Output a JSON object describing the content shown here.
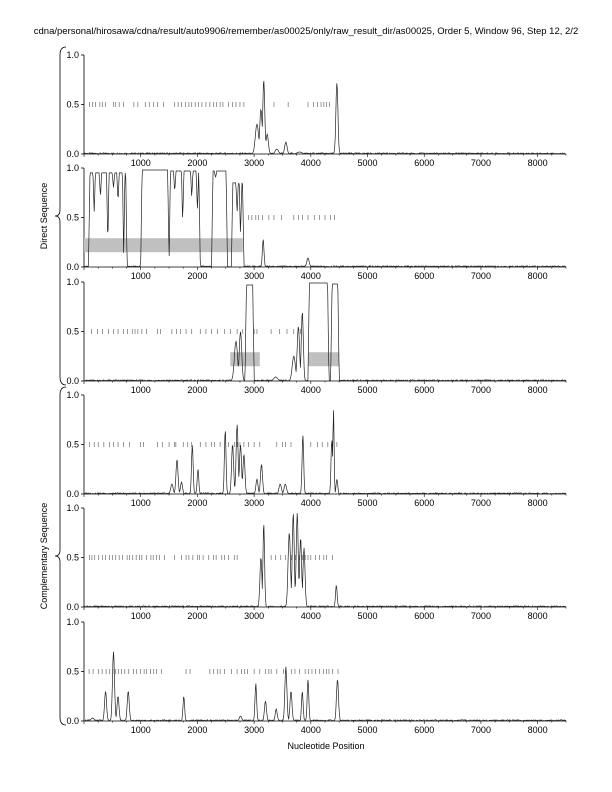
{
  "title": "cdna/personal/hirosawa/cdna/result/auto9906/remember/as00025/only/raw_result_dir/as00025, Order 5, Window 96, Step 12, 2/2",
  "colors": {
    "line": "#222222",
    "ticks": "#555555",
    "bar": "#c0c0c0",
    "axis": "#000000"
  },
  "chart_data": {
    "type": "line",
    "xlabel": "Nucleotide Position",
    "x_ticks": [
      1000,
      2000,
      3000,
      4000,
      5000,
      6000,
      7000,
      8000
    ],
    "y_ticks": [
      "0.0",
      "0.5",
      "1.0"
    ],
    "xlim": [
      0,
      8500
    ],
    "ylim": [
      0,
      1
    ],
    "groups": [
      {
        "label": "Direct Sequence",
        "panels": [
          0,
          1,
          2
        ]
      },
      {
        "label": "Complementary Sequence",
        "panels": [
          3,
          4,
          5
        ]
      }
    ],
    "panels": [
      {
        "ticks": [
          100,
          150,
          200,
          280,
          330,
          380,
          520,
          560,
          620,
          700,
          880,
          950,
          1080,
          1150,
          1230,
          1300,
          1400,
          1600,
          1660,
          1720,
          1790,
          1850,
          1900,
          1960,
          2020,
          2080,
          2150,
          2220,
          2280,
          2340,
          2400,
          2450,
          2550,
          2620,
          2680,
          2750,
          2820,
          3350,
          3600,
          3950,
          4050,
          4120,
          4180,
          4230,
          4280,
          4330
        ],
        "bars": [],
        "peaks": [
          [
            3050,
            0.3,
            40
          ],
          [
            3120,
            0.45,
            30
          ],
          [
            3170,
            0.75,
            25
          ],
          [
            3230,
            0.2,
            30
          ],
          [
            3400,
            0.05,
            40
          ],
          [
            3560,
            0.12,
            30
          ],
          [
            3800,
            0.02,
            60
          ],
          [
            4460,
            0.72,
            25
          ]
        ]
      },
      {
        "ticks": [
          2900,
          2960,
          3030,
          3080,
          3150,
          3260,
          3350,
          3480,
          3700,
          3780,
          3850,
          3950,
          4060,
          4150,
          4250,
          4350,
          4420
        ],
        "bars": [
          [
            0,
            2800,
            0.22
          ]
        ],
        "high": [
          [
            80,
            760,
            0.95
          ],
          [
            1000,
            1500,
            0.98
          ],
          [
            1500,
            2050,
            0.97
          ],
          [
            2250,
            2530,
            0.97
          ],
          [
            2600,
            2820,
            0.85
          ]
        ],
        "dips": [
          [
            180,
            0.55
          ],
          [
            290,
            0.7
          ],
          [
            420,
            0.2
          ],
          [
            520,
            0.8
          ],
          [
            600,
            0.65
          ],
          [
            700,
            0.1
          ],
          [
            1600,
            0.75
          ],
          [
            1740,
            0.45
          ],
          [
            1900,
            0.7
          ],
          [
            2000,
            0.55
          ],
          [
            2320,
            0.9
          ],
          [
            2700,
            0.55
          ],
          [
            2760,
            0.3
          ]
        ],
        "peaks": [
          [
            3160,
            0.28,
            20
          ],
          [
            3950,
            0.09,
            30
          ]
        ]
      },
      {
        "ticks": [
          130,
          240,
          330,
          430,
          520,
          600,
          700,
          770,
          850,
          900,
          950,
          1020,
          1100,
          1300,
          1350,
          1550,
          1630,
          1700,
          1800,
          1900,
          2050,
          2150,
          2250,
          2350,
          2480,
          2580,
          2700,
          2800,
          3000,
          3050,
          3300,
          3450,
          3580,
          3700,
          3820
        ],
        "bars": [
          [
            2580,
            3100,
            0.22
          ],
          [
            3950,
            4500,
            0.22
          ]
        ],
        "high": [
          [
            2840,
            3000,
            0.97
          ],
          [
            3950,
            4320,
            0.99
          ],
          [
            4350,
            4500,
            0.98
          ]
        ],
        "dips": [
          [
            4330,
            0.55
          ]
        ],
        "peaks": [
          [
            2680,
            0.4,
            40
          ],
          [
            2760,
            0.5,
            30
          ],
          [
            3380,
            0.04,
            50
          ],
          [
            3700,
            0.25,
            40
          ],
          [
            3780,
            0.55,
            30
          ],
          [
            3850,
            0.7,
            25
          ]
        ]
      },
      {
        "ticks": [
          100,
          180,
          250,
          350,
          450,
          520,
          600,
          700,
          800,
          1000,
          1050,
          1300,
          1380,
          1500,
          1600,
          1620,
          1750,
          1830,
          1900,
          2050,
          2150,
          2250,
          2300,
          2400,
          2500,
          2550,
          2650,
          2700,
          2750,
          2820,
          2900,
          3000,
          3100,
          3400,
          3500,
          3550,
          3650,
          3850,
          4000,
          4120,
          4200,
          4300,
          4460
        ],
        "bars": [],
        "peaks": [
          [
            1550,
            0.1,
            30
          ],
          [
            1640,
            0.35,
            25
          ],
          [
            1720,
            0.12,
            25
          ],
          [
            1910,
            0.5,
            20
          ],
          [
            2010,
            0.25,
            20
          ],
          [
            2490,
            0.65,
            20
          ],
          [
            2620,
            0.5,
            25
          ],
          [
            2700,
            0.7,
            25
          ],
          [
            2760,
            0.5,
            25
          ],
          [
            2820,
            0.4,
            25
          ],
          [
            3050,
            0.15,
            25
          ],
          [
            3130,
            0.3,
            25
          ],
          [
            3460,
            0.1,
            30
          ],
          [
            3550,
            0.1,
            30
          ],
          [
            3860,
            0.6,
            20
          ],
          [
            4370,
            0.55,
            20
          ],
          [
            4400,
            0.85,
            15
          ],
          [
            4460,
            0.15,
            20
          ]
        ]
      },
      {
        "ticks": [
          100,
          140,
          190,
          260,
          330,
          380,
          450,
          500,
          560,
          620,
          680,
          760,
          800,
          860,
          920,
          980,
          1020,
          1100,
          1180,
          1220,
          1280,
          1330,
          1420,
          1600,
          1720,
          1800,
          1850,
          1920,
          2000,
          2040,
          2100,
          2200,
          2280,
          2330,
          2430,
          2480,
          2550,
          2650,
          2700,
          3300,
          3380,
          3470,
          3550,
          3660,
          3730,
          3800,
          3850,
          3900,
          3950,
          4000,
          4080,
          4150,
          4230,
          4280,
          4380
        ],
        "bars": [],
        "peaks": [
          [
            3120,
            0.5,
            25
          ],
          [
            3170,
            0.85,
            20
          ],
          [
            3620,
            0.75,
            30
          ],
          [
            3690,
            0.95,
            25
          ],
          [
            3760,
            0.95,
            25
          ],
          [
            3820,
            0.7,
            25
          ],
          [
            3880,
            0.6,
            25
          ],
          [
            4450,
            0.22,
            20
          ]
        ]
      },
      {
        "ticks": [
          90,
          160,
          260,
          320,
          390,
          450,
          510,
          560,
          610,
          660,
          720,
          790,
          870,
          930,
          1000,
          1060,
          1100,
          1170,
          1230,
          1280,
          1370,
          1800,
          1870,
          2220,
          2280,
          2350,
          2400,
          2480,
          2600,
          2700,
          2780,
          2830,
          2880,
          3000,
          3100,
          3200,
          3260,
          3300,
          3400,
          3520,
          3660,
          3720,
          3800,
          3900,
          3960,
          4020,
          4080,
          4150,
          4220,
          4280,
          4320,
          4380,
          4480
        ],
        "bars": [],
        "peaks": [
          [
            150,
            0.03,
            40
          ],
          [
            380,
            0.3,
            25
          ],
          [
            520,
            0.7,
            25
          ],
          [
            600,
            0.25,
            25
          ],
          [
            780,
            0.3,
            25
          ],
          [
            1760,
            0.25,
            20
          ],
          [
            2760,
            0.05,
            30
          ],
          [
            3030,
            0.38,
            20
          ],
          [
            3200,
            0.2,
            25
          ],
          [
            3390,
            0.12,
            25
          ],
          [
            3560,
            0.55,
            25
          ],
          [
            3650,
            0.3,
            25
          ],
          [
            3850,
            0.3,
            20
          ],
          [
            3950,
            0.42,
            20
          ],
          [
            4470,
            0.42,
            25
          ]
        ]
      }
    ]
  }
}
